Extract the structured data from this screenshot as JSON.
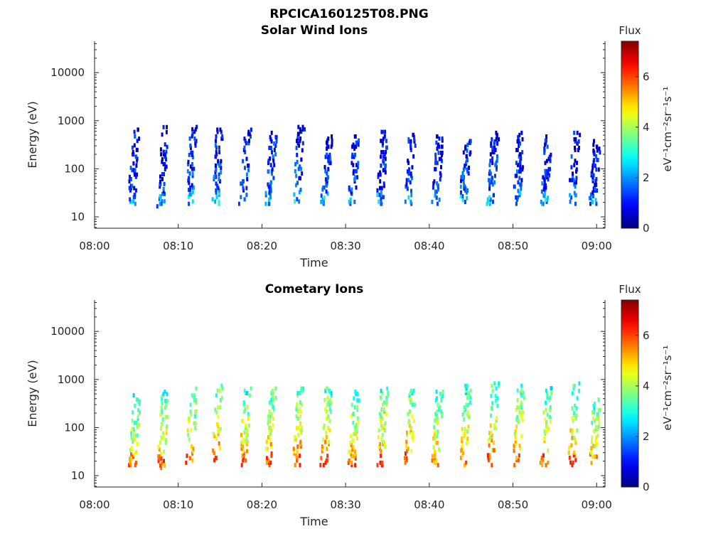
{
  "figure_title": "RPCICA160125T08.PNG",
  "chart_data": [
    {
      "type": "heatmap",
      "title": "Solar Wind Ions",
      "xlabel": "Time",
      "ylabel": "Energy (eV)",
      "x_ticks": [
        "08:00",
        "08:10",
        "08:20",
        "08:30",
        "08:40",
        "08:50",
        "09:00"
      ],
      "x_range": [
        "08:00",
        "09:01"
      ],
      "y_scale": "log",
      "y_ticks": [
        "10",
        "100",
        "1000",
        "10000"
      ],
      "y_range": [
        5.8,
        45000
      ],
      "colorbar": {
        "label": "Flux",
        "unit": "eV⁻¹cm⁻²sr⁻¹s⁻¹",
        "range": [
          0,
          7.4
        ],
        "ticks": [
          "0",
          "2",
          "4",
          "6"
        ],
        "colormap": "jet"
      },
      "scans": [
        {
          "t": 4.9,
          "e_lo": 18,
          "e_hi": 700,
          "flux": 1.2
        },
        {
          "t": 8.4,
          "e_lo": 16,
          "e_hi": 900,
          "flux": 1.3
        },
        {
          "t": 11.8,
          "e_lo": 18,
          "e_hi": 800,
          "flux": 1.5
        },
        {
          "t": 14.9,
          "e_lo": 18,
          "e_hi": 700,
          "flux": 1.6
        },
        {
          "t": 18.2,
          "e_lo": 18,
          "e_hi": 700,
          "flux": 1.5
        },
        {
          "t": 21.3,
          "e_lo": 18,
          "e_hi": 600,
          "flux": 1.6
        },
        {
          "t": 24.6,
          "e_lo": 18,
          "e_hi": 800,
          "flux": 1.5
        },
        {
          "t": 27.9,
          "e_lo": 18,
          "e_hi": 500,
          "flux": 1.4
        },
        {
          "t": 31.2,
          "e_lo": 18,
          "e_hi": 500,
          "flux": 1.4
        },
        {
          "t": 34.6,
          "e_lo": 18,
          "e_hi": 700,
          "flux": 1.4
        },
        {
          "t": 37.9,
          "e_lo": 18,
          "e_hi": 600,
          "flux": 1.3
        },
        {
          "t": 41.2,
          "e_lo": 18,
          "e_hi": 500,
          "flux": 1.3
        },
        {
          "t": 44.5,
          "e_lo": 18,
          "e_hi": 400,
          "flux": 1.5
        },
        {
          "t": 47.8,
          "e_lo": 18,
          "e_hi": 600,
          "flux": 1.4
        },
        {
          "t": 50.9,
          "e_lo": 18,
          "e_hi": 600,
          "flux": 1.4
        },
        {
          "t": 54.2,
          "e_lo": 18,
          "e_hi": 500,
          "flux": 1.5
        },
        {
          "t": 57.5,
          "e_lo": 18,
          "e_hi": 600,
          "flux": 1.4
        },
        {
          "t": 60.0,
          "e_lo": 18,
          "e_hi": 400,
          "flux": 1.3
        }
      ]
    },
    {
      "type": "heatmap",
      "title": "Cometary Ions",
      "xlabel": "Time",
      "ylabel": "Energy (eV)",
      "x_ticks": [
        "08:00",
        "08:10",
        "08:20",
        "08:30",
        "08:40",
        "08:50",
        "09:00"
      ],
      "x_range": [
        "08:00",
        "09:01"
      ],
      "y_scale": "log",
      "y_ticks": [
        "10",
        "100",
        "1000",
        "10000"
      ],
      "y_range": [
        5.8,
        45000
      ],
      "colorbar": {
        "label": "Flux",
        "unit": "eV⁻¹cm⁻²sr⁻¹s⁻¹",
        "range": [
          0,
          7.4
        ],
        "ticks": [
          "0",
          "2",
          "4",
          "6"
        ],
        "colormap": "jet"
      },
      "scans": [
        {
          "t": 5.0,
          "e_lo": 16,
          "e_hi": 500,
          "flux": 4.8
        },
        {
          "t": 8.4,
          "e_lo": 14,
          "e_hi": 600,
          "flux": 5.2
        },
        {
          "t": 11.8,
          "e_lo": 16,
          "e_hi": 700,
          "flux": 5.3
        },
        {
          "t": 14.9,
          "e_lo": 16,
          "e_hi": 800,
          "flux": 5.6
        },
        {
          "t": 18.2,
          "e_lo": 16,
          "e_hi": 700,
          "flux": 5.4
        },
        {
          "t": 21.3,
          "e_lo": 16,
          "e_hi": 700,
          "flux": 5.5
        },
        {
          "t": 24.6,
          "e_lo": 16,
          "e_hi": 700,
          "flux": 5.6
        },
        {
          "t": 27.9,
          "e_lo": 16,
          "e_hi": 700,
          "flux": 5.6
        },
        {
          "t": 31.2,
          "e_lo": 16,
          "e_hi": 600,
          "flux": 5.4
        },
        {
          "t": 34.6,
          "e_lo": 16,
          "e_hi": 700,
          "flux": 5.5
        },
        {
          "t": 37.9,
          "e_lo": 16,
          "e_hi": 700,
          "flux": 5.6
        },
        {
          "t": 41.2,
          "e_lo": 16,
          "e_hi": 600,
          "flux": 5.2
        },
        {
          "t": 44.5,
          "e_lo": 16,
          "e_hi": 800,
          "flux": 5.2
        },
        {
          "t": 47.8,
          "e_lo": 16,
          "e_hi": 900,
          "flux": 5.5
        },
        {
          "t": 50.9,
          "e_lo": 16,
          "e_hi": 800,
          "flux": 5.4
        },
        {
          "t": 54.2,
          "e_lo": 16,
          "e_hi": 800,
          "flux": 5.3
        },
        {
          "t": 57.5,
          "e_lo": 16,
          "e_hi": 900,
          "flux": 5.4
        },
        {
          "t": 60.0,
          "e_lo": 16,
          "e_hi": 500,
          "flux": 5.2
        }
      ]
    }
  ]
}
